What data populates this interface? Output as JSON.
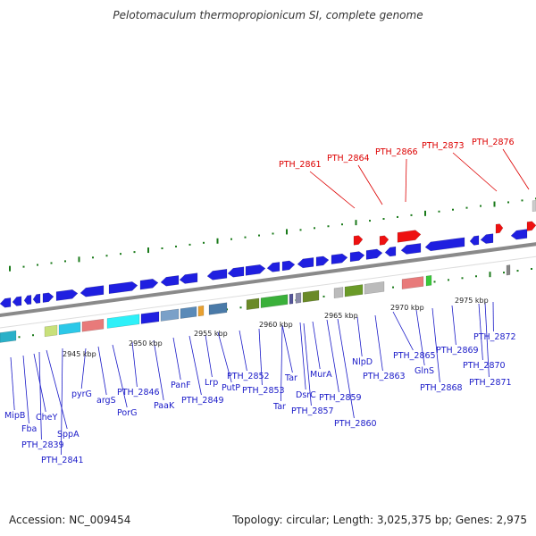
{
  "header": {
    "title": "Pelotomaculum thermopropionicum SI, complete genome"
  },
  "footer": {
    "accession": "Accession: NC_009454",
    "summary": "Topology: circular; Length: 3,025,375 bp; Genes: 2,975"
  },
  "scale_ticks": [
    "2945 kbp",
    "2950 kbp",
    "2955 kbp",
    "2960 kbp",
    "2965 kbp",
    "2970 kbp",
    "2975 kbp"
  ],
  "top_labels": [
    "PTH_2861",
    "PTH_2864",
    "PTH_2866",
    "PTH_2873",
    "PTH_2876"
  ],
  "bottom_labels": [
    "MipB",
    "Fba",
    "CheY",
    "PTH_2839",
    "SppA",
    "PTH_2841",
    "pyrG",
    "argS",
    "PorG",
    "PTH_2846",
    "PaaK",
    "PanF",
    "Lrp",
    "PTH_2849",
    "PutP",
    "PTH_2852",
    "PTH_2853",
    "Tar",
    "Tar",
    "DsrC",
    "PTH_2857",
    "MurA",
    "PTH_2859",
    "PTH_2860",
    "NlpD",
    "PTH_2863",
    "PTH_2865",
    "GlnS",
    "PTH_2868",
    "PTH_2869",
    "PTH_2870",
    "PTH_2871",
    "PTH_2872"
  ],
  "colors": {
    "gene_blue": "#1f1fe0",
    "label_blue": "#1a1ac8",
    "label_red": "#dd0000",
    "tick_green": "#1a7a1a",
    "backbone_gray": "#8a8a8a"
  }
}
